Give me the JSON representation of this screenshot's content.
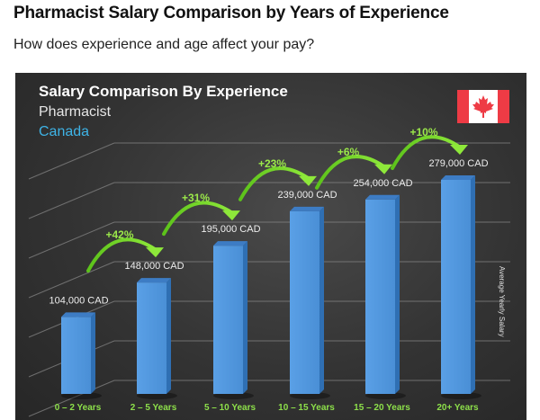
{
  "page": {
    "title": "Pharmacist Salary Comparison by Years of Experience",
    "subtitle": "How does experience and age affect your pay?"
  },
  "chart": {
    "title": "Salary Comparison By Experience",
    "job": "Pharmacist",
    "country": "Canada",
    "flag_icon": "canada-flag-icon",
    "y_axis_label": "Average Yearly Salary",
    "colors": {
      "bar": "#4a90d9",
      "growth": "#7ed321",
      "country": "#3eb3e6",
      "category_label": "#8de04a"
    }
  },
  "chart_data": {
    "type": "bar",
    "title": "Salary Comparison By Experience",
    "subtitle": "Pharmacist — Canada",
    "xlabel": "",
    "ylabel": "Average Yearly Salary",
    "categories": [
      "0 – 2 Years",
      "2 – 5 Years",
      "5 – 10 Years",
      "10 – 15 Years",
      "15 – 20 Years",
      "20+ Years"
    ],
    "values": [
      104000,
      148000,
      195000,
      239000,
      254000,
      279000
    ],
    "value_labels": [
      "104,000 CAD",
      "148,000 CAD",
      "195,000 CAD",
      "239,000 CAD",
      "254,000 CAD",
      "279,000 CAD"
    ],
    "growth_annotations": [
      "+42%",
      "+31%",
      "+23%",
      "+6%",
      "+10%"
    ],
    "unit": "CAD",
    "grid": true,
    "legend": null
  }
}
